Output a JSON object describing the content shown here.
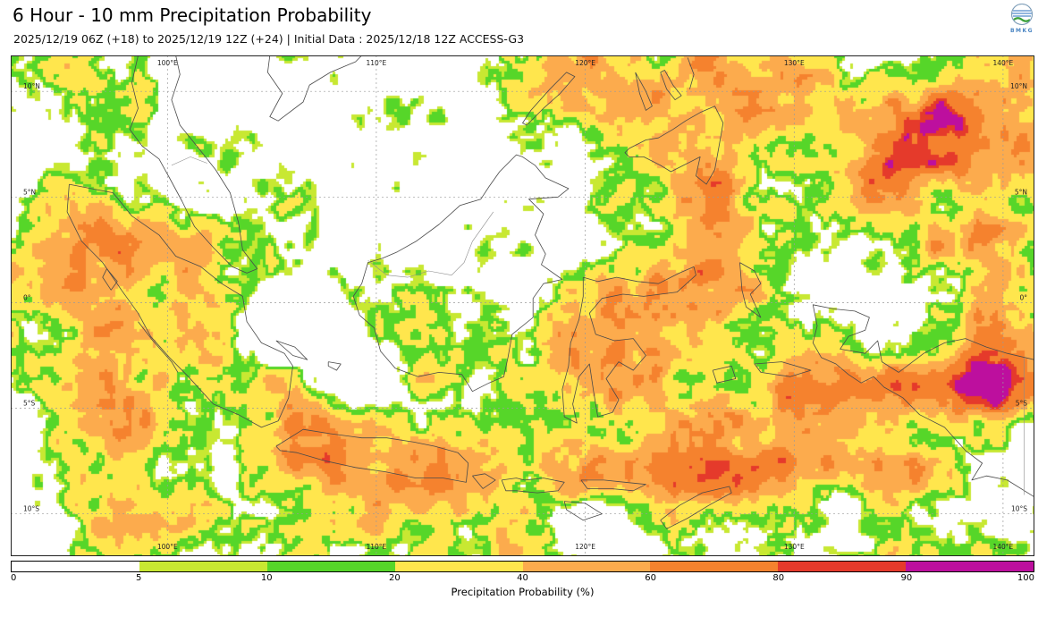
{
  "header": {
    "title": "6 Hour - 10 mm Precipitation Probability",
    "subtitle": "2025/12/19 06Z (+18) to 2025/12/19 12Z (+24) | Initial Data : 2025/12/18 12Z ACCESS-G3",
    "logo_text": "BMKG"
  },
  "map": {
    "extent": {
      "lon_min": 92.5,
      "lon_max": 141.5,
      "lat_min": -12.0,
      "lat_max": 11.7
    },
    "grid": {
      "lon_values": [
        100,
        110,
        120,
        130,
        140
      ],
      "lon_labels": [
        "100°E",
        "110°E",
        "120°E",
        "130°E",
        "140°E"
      ],
      "lat_values": [
        10,
        5,
        0,
        -5,
        -10
      ],
      "lat_labels": [
        "10°N",
        "5°N",
        "0°",
        "5°S",
        "10°S"
      ]
    }
  },
  "legend": {
    "title": "Precipitation Probability (%)",
    "thresholds": [
      0,
      5,
      10,
      20,
      40,
      60,
      80,
      90,
      100
    ],
    "tick_labels": [
      "0",
      "5",
      "10",
      "20",
      "40",
      "60",
      "80",
      "90",
      "100"
    ],
    "colors": [
      "#ffffff",
      "#c8e832",
      "#56d629",
      "#ffe64d",
      "#fcab4d",
      "#f5822e",
      "#e53a2b",
      "#bd0f9e"
    ]
  }
}
